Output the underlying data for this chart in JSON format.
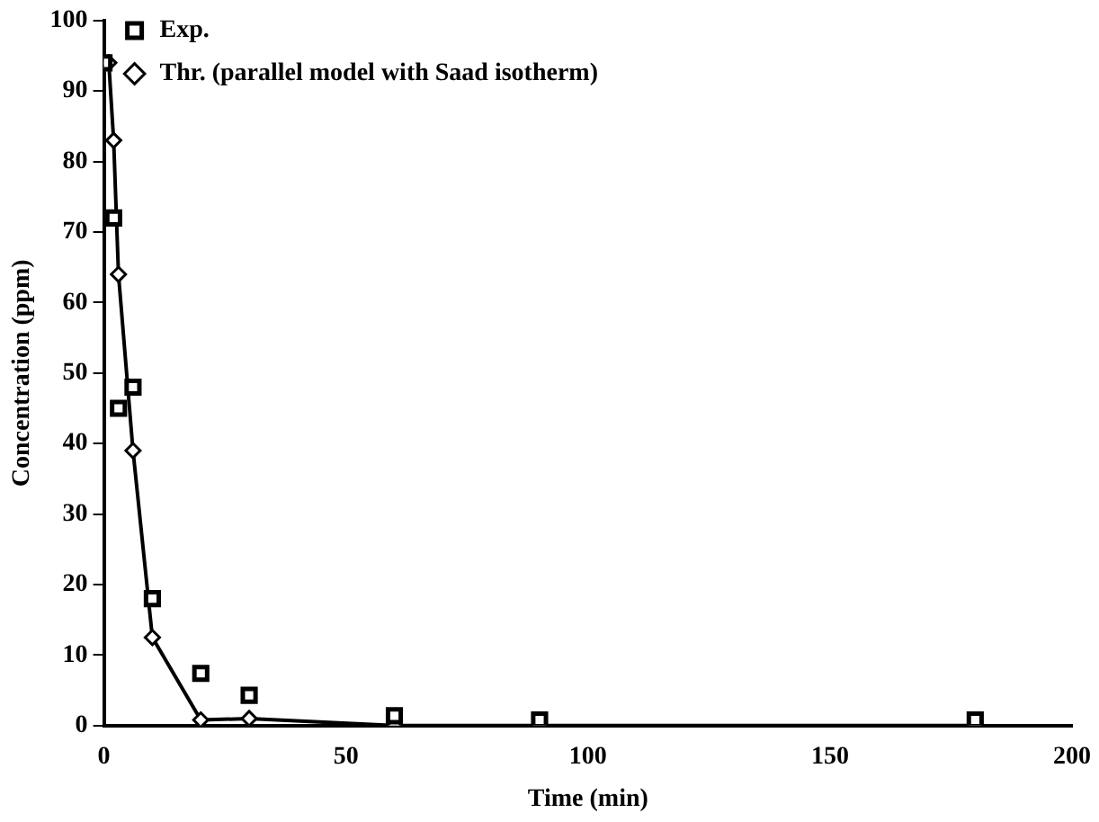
{
  "chart_data": {
    "type": "line",
    "xlabel": "Time (min)",
    "ylabel": "Concentration (ppm)",
    "xlim": [
      0,
      200
    ],
    "xticks": [
      0,
      50,
      100,
      150,
      200
    ],
    "ylim": [
      0,
      100
    ],
    "yticks": [
      0,
      10,
      20,
      30,
      40,
      50,
      60,
      70,
      80,
      90,
      100
    ],
    "grid": false,
    "legend": "top left",
    "series": [
      {
        "name": "Thr. (parallel model with Saad isotherm)",
        "type": "line",
        "color": "#000000",
        "marker": "diamond",
        "x": [
          1,
          2,
          3,
          6,
          10,
          20,
          30,
          60,
          90,
          180
        ],
        "values": [
          94,
          83,
          64,
          39,
          12.5,
          0.8,
          1,
          0,
          0,
          0
        ]
      },
      {
        "name": "Exp.",
        "type": "scatter",
        "color": "#000000",
        "marker": "square",
        "x": [
          0,
          2,
          3,
          6,
          10,
          20,
          30,
          60,
          90,
          180
        ],
        "values": [
          94,
          72,
          45,
          48,
          18,
          7.4,
          4.3,
          1.4,
          0.8,
          0.8
        ]
      }
    ]
  }
}
